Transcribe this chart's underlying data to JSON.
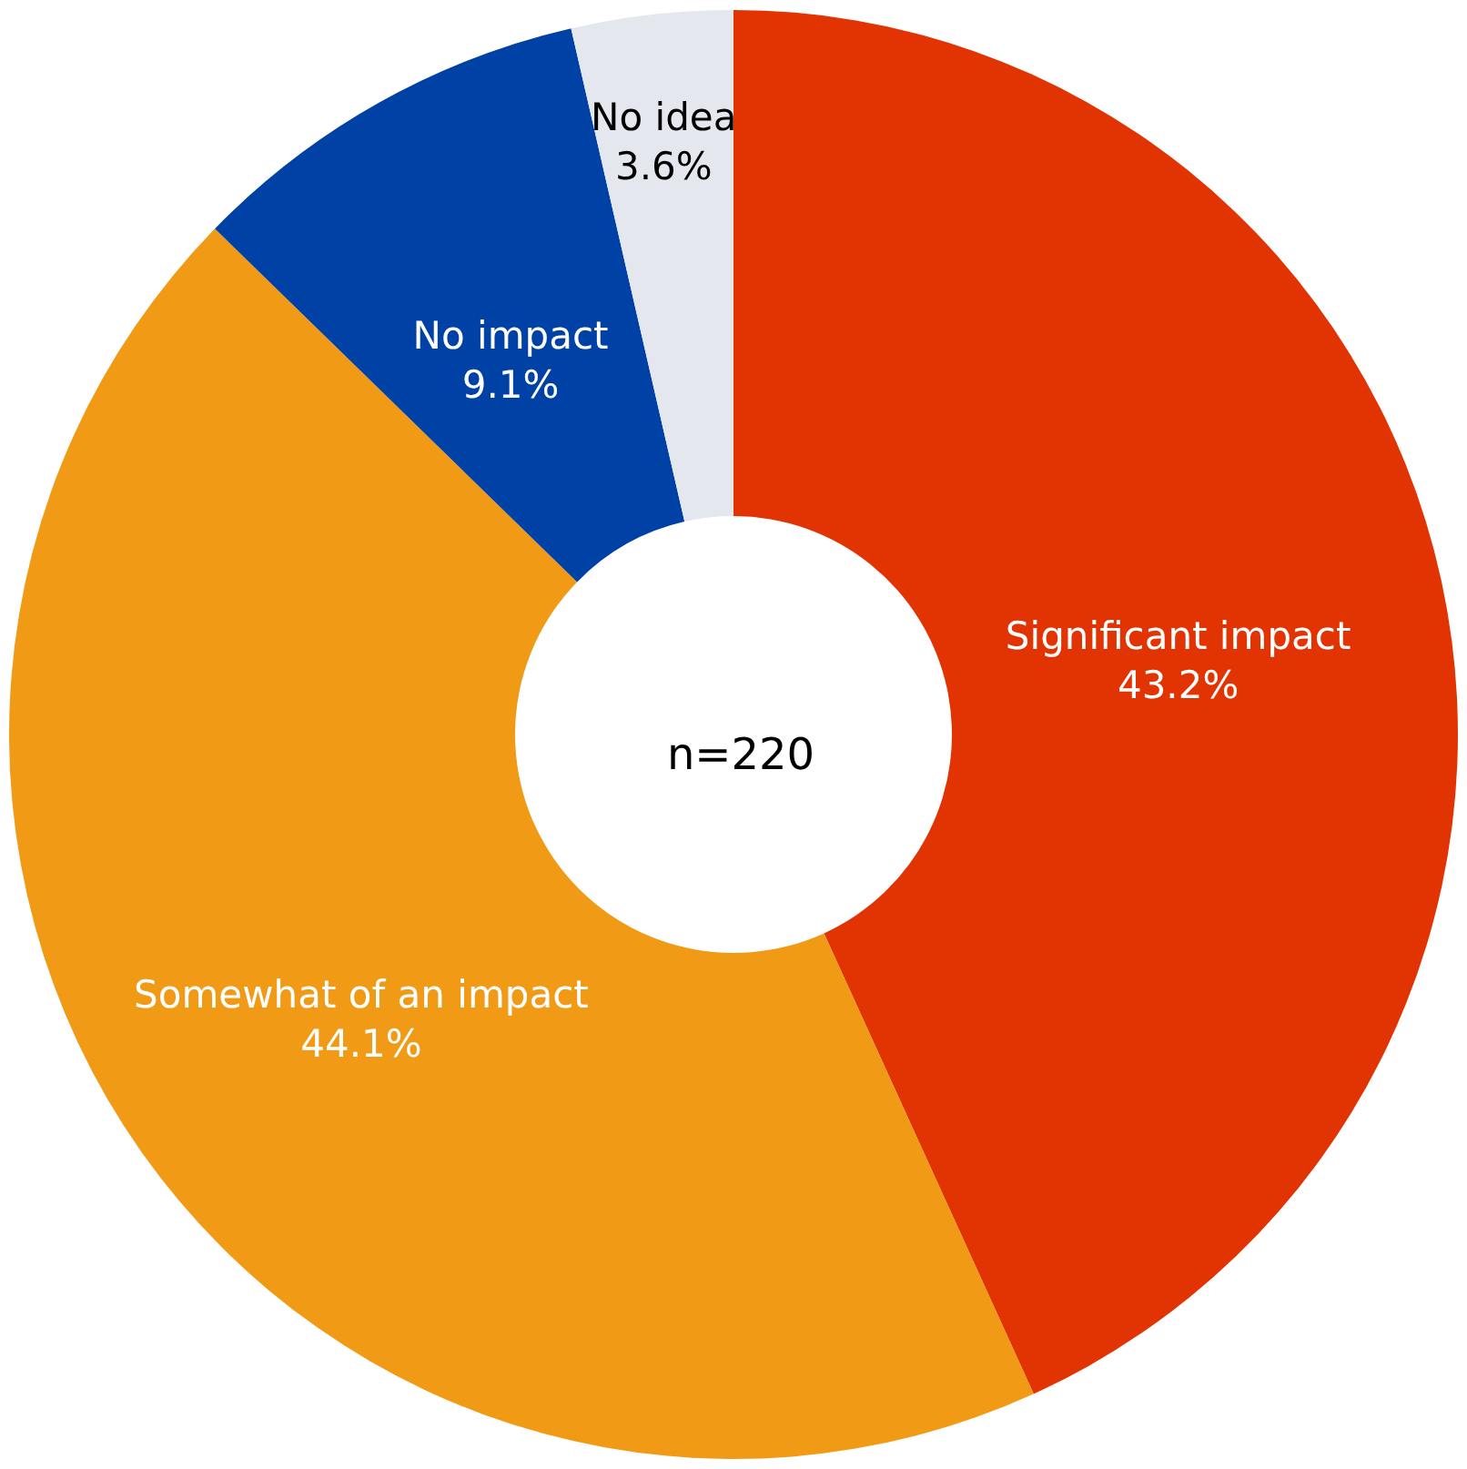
{
  "chart_data": {
    "type": "donut",
    "categories": [
      "Significant impact",
      "Somewhat of an impact",
      "No impact",
      "No idea"
    ],
    "values": [
      43.2,
      44.1,
      9.1,
      3.6
    ],
    "value_labels": [
      "43.2%",
      "44.1%",
      "9.1%",
      "3.6%"
    ],
    "colors": [
      "#e23403",
      "#f19a15",
      "#0041a5",
      "#e4e8ee"
    ],
    "annotations": [
      "n=220"
    ]
  }
}
